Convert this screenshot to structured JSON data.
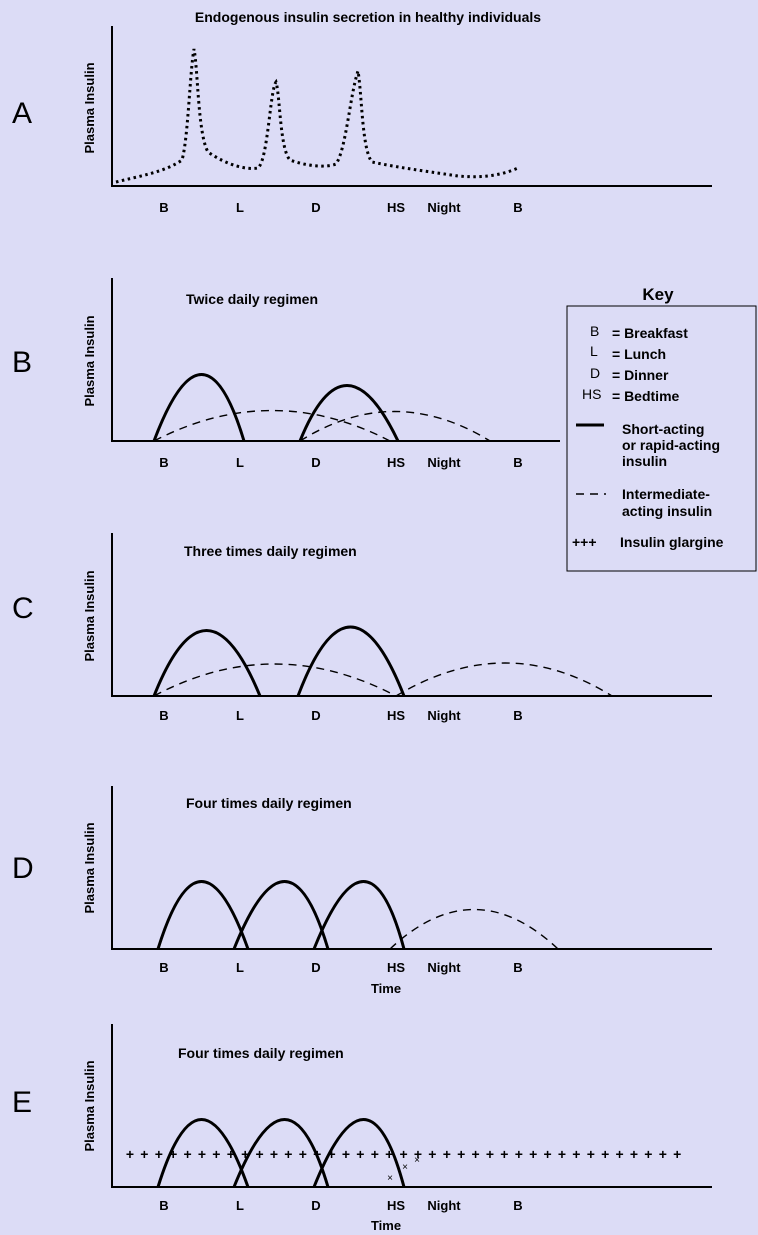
{
  "colors": {
    "background": "#dcdcf6",
    "ink": "#000000"
  },
  "y_axis_label": "Plasma Insulin",
  "x_axis_label": "Time",
  "ticks": {
    "A": [
      "B",
      "L",
      "D",
      "HS",
      "Night",
      "B"
    ],
    "B": [
      "B",
      "L",
      "D",
      "HS",
      "Night",
      "B"
    ],
    "C": [
      "B",
      "L",
      "D",
      "HS",
      "Night",
      "B"
    ],
    "D": [
      "B",
      "L",
      "D",
      "HS",
      "Night",
      "B"
    ],
    "E": [
      "B",
      "L",
      "D",
      "HS",
      "Night",
      "B"
    ]
  },
  "panels": [
    {
      "letter": "A",
      "title": "Endogenous insulin secretion in healthy individuals",
      "show_time": false
    },
    {
      "letter": "B",
      "title": "Twice daily regimen",
      "show_time": false
    },
    {
      "letter": "C",
      "title": "Three times daily regimen",
      "show_time": false
    },
    {
      "letter": "D",
      "title": "Four times daily regimen",
      "show_time": true
    },
    {
      "letter": "E",
      "title": "Four times daily regimen",
      "show_time": true
    }
  ],
  "key": {
    "title": "Key",
    "abbreviations": [
      {
        "symbol": "B",
        "meaning": "= Breakfast"
      },
      {
        "symbol": "L",
        "meaning": "= Lunch"
      },
      {
        "symbol": "D",
        "meaning": "= Dinner"
      },
      {
        "symbol": "HS",
        "meaning": "= Bedtime"
      }
    ],
    "lines": [
      {
        "style": "solid",
        "label_lines": [
          "Short-acting",
          "or rapid-acting",
          "insulin"
        ]
      },
      {
        "style": "dashed",
        "label_lines": [
          "Intermediate-",
          "acting insulin"
        ]
      },
      {
        "style": "plus",
        "label_lines": [
          "Insulin glargine"
        ]
      }
    ]
  }
}
